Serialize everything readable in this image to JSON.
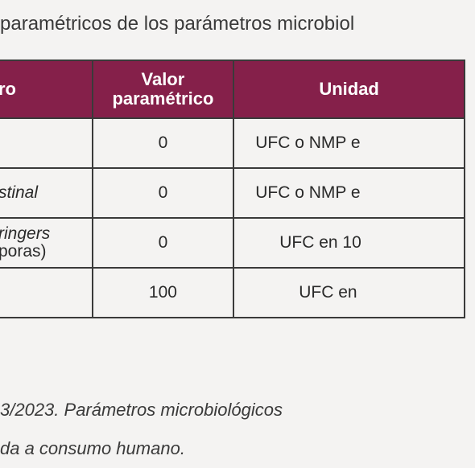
{
  "caption": "paramétricos de los parámetros microbiol",
  "table": {
    "headers": [
      "ro",
      "Valor paramétrico",
      "Unidad"
    ],
    "rows": [
      {
        "param": "",
        "param2": "",
        "value": "0",
        "unit": "UFC o NMP e"
      },
      {
        "param": "stinal",
        "param2": "",
        "value": "0",
        "unit": "UFC o NMP e"
      },
      {
        "param": "ringers",
        "param2": "poras)",
        "value": "0",
        "unit": "UFC en 10"
      },
      {
        "param": "",
        "param2": "",
        "value": "100",
        "unit": "UFC en"
      }
    ]
  },
  "note": {
    "line1": "3/2023. Parámetros microbiológicos",
    "line2": "da a consumo humano."
  }
}
